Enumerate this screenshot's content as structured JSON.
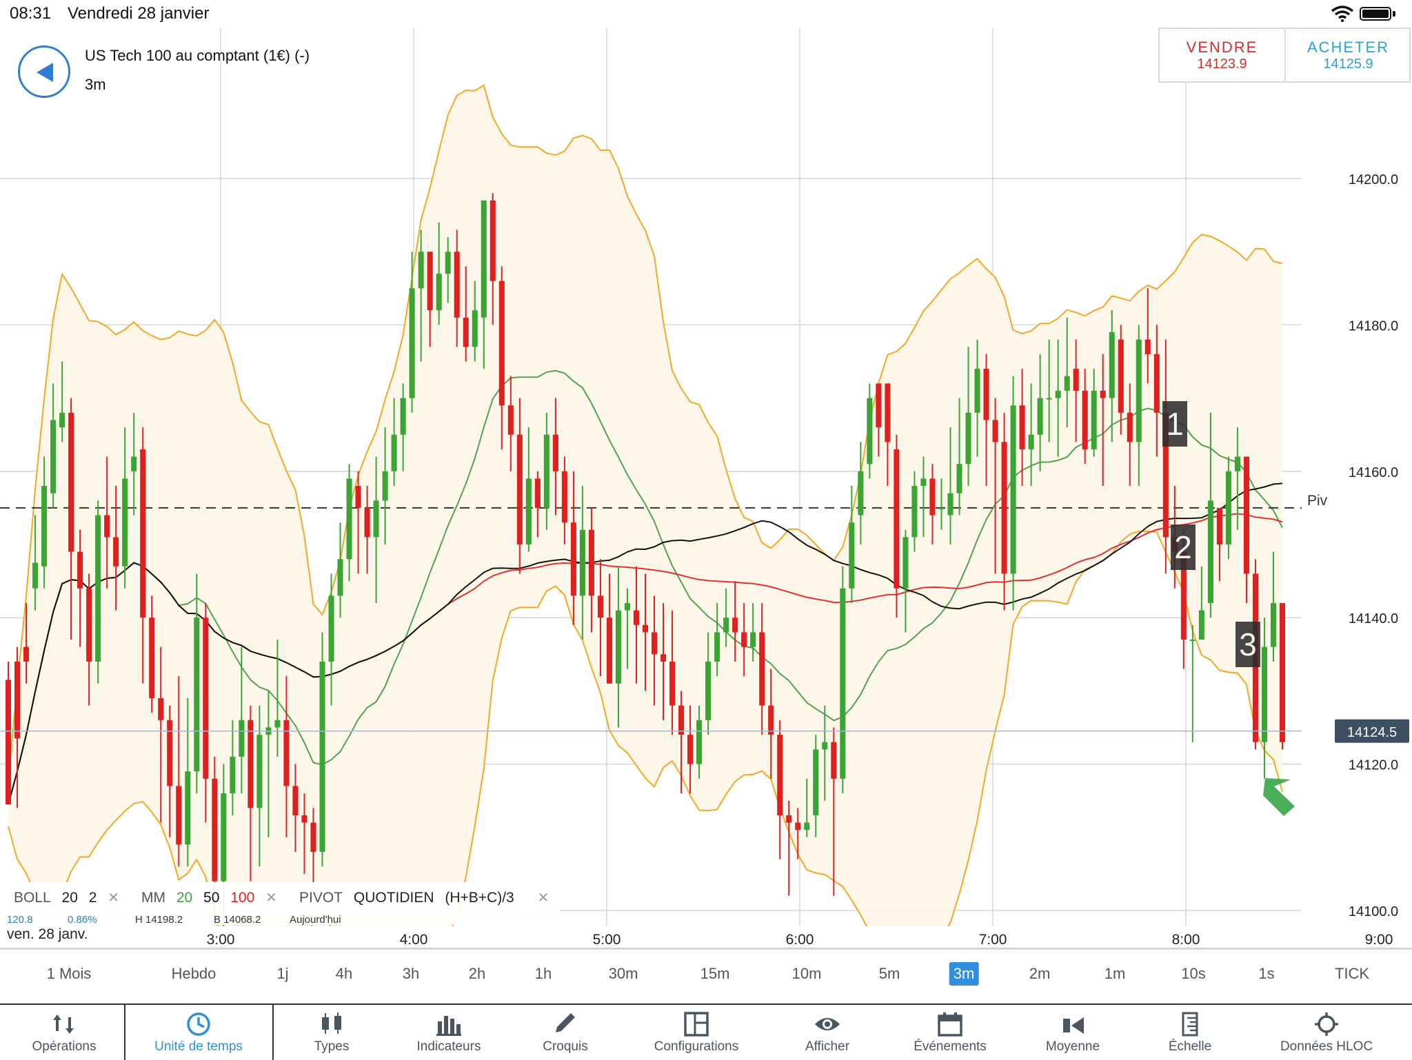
{
  "status": {
    "time": "08:31",
    "date": "Vendredi 28 janvier"
  },
  "header": {
    "instrument": "US Tech 100 au comptant (1€) (-)",
    "timeframe": "3m"
  },
  "trade": {
    "sell_label": "VENDRE",
    "sell_price": "14123.9",
    "buy_label": "ACHETER",
    "buy_price": "14125.9"
  },
  "chart_data": {
    "type": "candlestick",
    "y_ticks": [
      "14100.0",
      "14120.0",
      "14140.0",
      "14160.0",
      "14180.0",
      "14200.0"
    ],
    "x_ticks": [
      "3:00",
      "4:00",
      "5:00",
      "6:00",
      "7:00",
      "8:00",
      "9:00"
    ],
    "ylim": [
      14098,
      14218
    ],
    "current_price": "14124.5",
    "pivot": {
      "label": "Piv",
      "value": 14155
    },
    "annotations": [
      "1",
      "2",
      "3"
    ],
    "colors": {
      "up": "#3aa535",
      "down": "#e02020",
      "bollinger": "#f5a623",
      "ma20": "#4fa34f",
      "ma50": "#111111",
      "ma100": "#e03030"
    },
    "candles": [
      [
        14131.5,
        14114.5,
        14123,
        14134
      ],
      [
        14134,
        14123.5,
        14136,
        14114
      ],
      [
        14136,
        14134,
        14142,
        14131
      ],
      [
        14144,
        14147.5,
        14154,
        14141
      ],
      [
        14147,
        14158,
        14162,
        14144
      ],
      [
        14157,
        14167,
        14172,
        14155
      ],
      [
        14166,
        14168,
        14175,
        14164
      ],
      [
        14168,
        14149,
        14170,
        14137
      ],
      [
        14149,
        14144,
        14152,
        14136
      ],
      [
        14144,
        14134,
        14146,
        14128
      ],
      [
        14134,
        14154,
        14156,
        14131
      ],
      [
        14154,
        14151,
        14162,
        14144
      ],
      [
        14151,
        14147,
        14158,
        14141
      ],
      [
        14147,
        14159,
        14166,
        14144
      ],
      [
        14160,
        14162,
        14168,
        14154
      ],
      [
        14163,
        14140,
        14166,
        14131
      ],
      [
        14140,
        14129,
        14143,
        14127
      ],
      [
        14129,
        14126,
        14136,
        14112
      ],
      [
        14126,
        14117,
        14128,
        14110
      ],
      [
        14117,
        14109,
        14132,
        14106
      ],
      [
        14109,
        14119,
        14129,
        14106
      ],
      [
        14119,
        14140,
        14146,
        14116
      ],
      [
        14140,
        14118,
        14142,
        14112
      ],
      [
        14118,
        14104,
        14121,
        14098
      ],
      [
        14104,
        14116,
        14120,
        14096
      ],
      [
        14116,
        14121,
        14126,
        14113
      ],
      [
        14121,
        14126,
        14136,
        14116
      ],
      [
        14126,
        14114,
        14128,
        14104
      ],
      [
        14114,
        14124,
        14128,
        14106
      ],
      [
        14124,
        14125,
        14130,
        14110
      ],
      [
        14125,
        14126,
        14137,
        14121
      ],
      [
        14126,
        14117,
        14132,
        14110
      ],
      [
        14117,
        14113,
        14120,
        14108
      ],
      [
        14113,
        14112,
        14116,
        14105
      ],
      [
        14112,
        14108,
        14114,
        14103
      ],
      [
        14108,
        14134,
        14138,
        14106
      ],
      [
        14134,
        14143,
        14146,
        14128
      ],
      [
        14143,
        14148,
        14153,
        14140
      ],
      [
        14148,
        14159,
        14161,
        14145
      ],
      [
        14158,
        14155,
        14160,
        14146
      ],
      [
        14155,
        14151,
        14158,
        14146
      ],
      [
        14151,
        14156,
        14162,
        14142
      ],
      [
        14156,
        14160,
        14166,
        14150
      ],
      [
        14160,
        14165,
        14170,
        14158
      ],
      [
        14165,
        14170,
        14172,
        14160
      ],
      [
        14170,
        14185,
        14190,
        14168
      ],
      [
        14185,
        14190,
        14193,
        14175
      ],
      [
        14190,
        14182,
        14188,
        14177
      ],
      [
        14182,
        14187,
        14194,
        14180
      ],
      [
        14187,
        14190,
        14192,
        14183
      ],
      [
        14190,
        14181,
        14193,
        14177
      ],
      [
        14181,
        14177,
        14188,
        14175
      ],
      [
        14177,
        14182,
        14186,
        14175
      ],
      [
        14181,
        14197,
        14197,
        14174
      ],
      [
        14197,
        14186,
        14198,
        14180
      ],
      [
        14186,
        14169,
        14188,
        14163
      ],
      [
        14169,
        14165,
        14173,
        14160
      ],
      [
        14165,
        14150,
        14170,
        14146
      ],
      [
        14150,
        14159,
        14166,
        14149
      ],
      [
        14159,
        14155,
        14160,
        14151
      ],
      [
        14155,
        14165,
        14168,
        14152
      ],
      [
        14165,
        14160,
        14170,
        14154
      ],
      [
        14160,
        14153,
        14162,
        14150
      ],
      [
        14153,
        14143,
        14160,
        14139
      ],
      [
        14143,
        14152,
        14158,
        14137
      ],
      [
        14152,
        14143,
        14155,
        14138
      ],
      [
        14143,
        14140,
        14148,
        14132
      ],
      [
        14140,
        14131,
        14146,
        14131
      ],
      [
        14131,
        14141,
        14147,
        14125
      ],
      [
        14141,
        14142,
        14144,
        14133
      ],
      [
        14141,
        14139,
        14147,
        14131
      ],
      [
        14139,
        14138,
        14146,
        14130
      ],
      [
        14138,
        14135,
        14143,
        14128
      ],
      [
        14135,
        14134,
        14142,
        14126
      ],
      [
        14134,
        14128,
        14141,
        14124
      ],
      [
        14128,
        14124,
        14130,
        14116
      ],
      [
        14124,
        14120,
        14128,
        14116
      ],
      [
        14120,
        14126,
        14128,
        14118
      ],
      [
        14126,
        14134,
        14138,
        14124
      ],
      [
        14134,
        14138,
        14142,
        14132
      ],
      [
        14138,
        14140,
        14144,
        14136
      ],
      [
        14140,
        14138,
        14145,
        14134
      ],
      [
        14138,
        14136,
        14142,
        14132
      ],
      [
        14136,
        14138,
        14142,
        14134
      ],
      [
        14138,
        14128,
        14142,
        14124
      ],
      [
        14128,
        14124,
        14133,
        14118
      ],
      [
        14124,
        14113,
        14126,
        14107
      ],
      [
        14113,
        14112,
        14115,
        14102
      ],
      [
        14112,
        14111,
        14114,
        14107
      ],
      [
        14111,
        14112,
        14118,
        14110
      ],
      [
        14113,
        14122,
        14124,
        14110
      ],
      [
        14122,
        14123,
        14128,
        14115
      ],
      [
        14123,
        14118,
        14125,
        14102
      ],
      [
        14118,
        14144,
        14147,
        14116
      ],
      [
        14144,
        14153,
        14158,
        14142
      ],
      [
        14154,
        14160,
        14164,
        14150
      ],
      [
        14161,
        14170,
        14172,
        14159
      ],
      [
        14172,
        14166,
        14172,
        14162
      ],
      [
        14172,
        14164,
        14170,
        14158
      ],
      [
        14163,
        14144,
        14165,
        14140
      ],
      [
        14144,
        14151,
        14152,
        14138
      ],
      [
        14151,
        14158,
        14160,
        14149
      ],
      [
        14158,
        14159,
        14162,
        14151
      ],
      [
        14159,
        14154,
        14161,
        14150
      ],
      [
        14155,
        14155,
        14159,
        14152
      ],
      [
        14154,
        14157,
        14166,
        14150
      ],
      [
        14157,
        14161,
        14170,
        14154
      ],
      [
        14161,
        14168,
        14177,
        14158
      ],
      [
        14168,
        14174,
        14178,
        14162
      ],
      [
        14174,
        14167,
        14176,
        14158
      ],
      [
        14167,
        14164,
        14170,
        14146
      ],
      [
        14164,
        14146,
        14168,
        14141
      ],
      [
        14146,
        14169,
        14173,
        14141
      ],
      [
        14169,
        14163,
        14174,
        14158
      ],
      [
        14163,
        14165,
        14172,
        14158
      ],
      [
        14165,
        14170,
        14176,
        14160
      ],
      [
        14170,
        14170,
        14178,
        14164
      ],
      [
        14170,
        14171,
        14178,
        14162
      ],
      [
        14171,
        14173,
        14181,
        14166
      ],
      [
        14174,
        14171,
        14178,
        14164
      ],
      [
        14171,
        14163,
        14174,
        14161
      ],
      [
        14163,
        14171,
        14174,
        14162
      ],
      [
        14171,
        14170,
        14176,
        14158
      ],
      [
        14170,
        14179,
        14182,
        14164
      ],
      [
        14178,
        14168,
        14180,
        14165
      ],
      [
        14168,
        14164,
        14172,
        14158
      ],
      [
        14164,
        14178,
        14180,
        14158
      ],
      [
        14178,
        14176,
        14185,
        14172
      ],
      [
        14176,
        14168,
        14180,
        14162
      ],
      [
        14168,
        14151,
        14178,
        14146
      ],
      [
        14151,
        14149,
        14158,
        14144
      ],
      [
        14149,
        14137,
        14152,
        14133
      ],
      [
        14137,
        14137,
        14139,
        14123
      ],
      [
        14137,
        14141,
        14147,
        14138
      ],
      [
        14142,
        14156,
        14168,
        14140
      ],
      [
        14155,
        14150,
        14152,
        14145
      ],
      [
        14150,
        14160,
        14162,
        14148
      ],
      [
        14160,
        14162,
        14166,
        14152
      ],
      [
        14162,
        14146,
        14162,
        14142
      ],
      [
        14146,
        14123,
        14148,
        14122
      ],
      [
        14123,
        14136,
        14140,
        14118
      ],
      [
        14136,
        14142,
        14149,
        14134
      ],
      [
        14142,
        14123,
        14142,
        14122
      ]
    ]
  },
  "legend": {
    "boll": "BOLL",
    "boll_p1": "20",
    "boll_p2": "2",
    "mm": "MM",
    "mm_p1": "20",
    "mm_p2": "50",
    "mm_p3": "100",
    "pivot": "PIVOT",
    "pivot_type": "QUOTIDIEN",
    "pivot_formula": "(H+B+C)/3",
    "close": "✕",
    "sub": [
      "120.8",
      "0.86%",
      "H 14198.2",
      "B 14068.2",
      "Aujourd'hui"
    ]
  },
  "date_label": "ven. 28 janv.",
  "timeframes": [
    "1 Mois",
    "Hebdo",
    "1j",
    "4h",
    "3h",
    "2h",
    "1h",
    "30m",
    "15m",
    "10m",
    "5m",
    "3m",
    "2m",
    "1m",
    "10s",
    "1s",
    "TICK"
  ],
  "selected_timeframe": "3m",
  "toolbar": [
    "Opérations",
    "Unité de temps",
    "Types",
    "Indicateurs",
    "Croquis",
    "Configurations",
    "Afficher",
    "Événements",
    "Moyenne",
    "Échelle",
    "Données HLOC"
  ],
  "active_tool": "Unité de temps"
}
